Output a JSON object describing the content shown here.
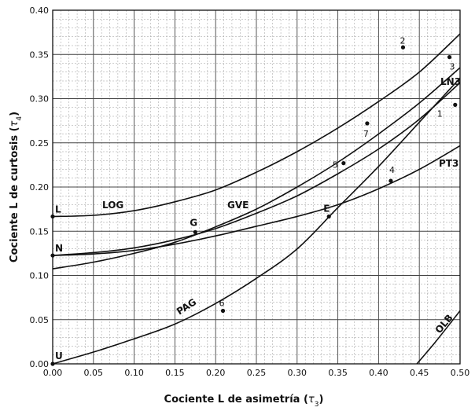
{
  "chart_data": {
    "type": "line",
    "xlabel_main": "Cociente L de asimetría (",
    "xlabel_sym": "τ",
    "xlabel_sub": "3",
    "ylabel_main": "Cociente L de curtosis (",
    "ylabel_sym": "τ",
    "ylabel_sub": "4",
    "label_close": ")",
    "xlim": [
      0,
      0.5
    ],
    "ylim": [
      0,
      0.4
    ],
    "x_ticks": [
      "0.00",
      "0.05",
      "0.10",
      "0.15",
      "0.20",
      "0.25",
      "0.30",
      "0.35",
      "0.40",
      "0.45",
      "0.50"
    ],
    "y_ticks": [
      "0.00",
      "0.05",
      "0.10",
      "0.15",
      "0.20",
      "0.25",
      "0.30",
      "0.35",
      "0.40"
    ],
    "grid": true,
    "series": [
      {
        "name": "LOG",
        "x": [
          0,
          0.05,
          0.1,
          0.15,
          0.2,
          0.25,
          0.3,
          0.35,
          0.4,
          0.45,
          0.5
        ],
        "y": [
          0.1667,
          0.168,
          0.1733,
          0.1833,
          0.1967,
          0.2167,
          0.24,
          0.2667,
          0.2967,
          0.33,
          0.3733
        ]
      },
      {
        "name": "GVE",
        "x": [
          0,
          0.05,
          0.1,
          0.15,
          0.2,
          0.25,
          0.3,
          0.35,
          0.4,
          0.45,
          0.5
        ],
        "y": [
          0.1075,
          0.115,
          0.125,
          0.1375,
          0.155,
          0.175,
          0.2,
          0.228,
          0.26,
          0.295,
          0.335
        ]
      },
      {
        "name": "LN3",
        "x": [
          0,
          0.05,
          0.1,
          0.15,
          0.2,
          0.25,
          0.3,
          0.35,
          0.4,
          0.45,
          0.5
        ],
        "y": [
          0.1226,
          0.1258,
          0.1312,
          0.1404,
          0.153,
          0.1703,
          0.19,
          0.215,
          0.243,
          0.2767,
          0.318
        ]
      },
      {
        "name": "PT3",
        "x": [
          0,
          0.05,
          0.1,
          0.15,
          0.2,
          0.25,
          0.3,
          0.35,
          0.4,
          0.45,
          0.5
        ],
        "y": [
          0.1226,
          0.1243,
          0.1283,
          0.1354,
          0.1447,
          0.1556,
          0.1667,
          0.18,
          0.198,
          0.22,
          0.2467
        ]
      },
      {
        "name": "PAG",
        "x": [
          0,
          0.05,
          0.1,
          0.15,
          0.2,
          0.25,
          0.3,
          0.35,
          0.4,
          0.45,
          0.5
        ],
        "y": [
          0,
          0.0133,
          0.0283,
          0.045,
          0.0683,
          0.0967,
          0.13,
          0.1767,
          0.2233,
          0.2733,
          0.3233
        ]
      },
      {
        "name": "OLB",
        "x": [
          0.447,
          0.47,
          0.5
        ],
        "y": [
          0,
          0.025,
          0.06
        ]
      }
    ],
    "points": [
      {
        "label": "1",
        "x": 0.494,
        "y": 0.293
      },
      {
        "label": "2",
        "x": 0.43,
        "y": 0.358
      },
      {
        "label": "3",
        "x": 0.487,
        "y": 0.347
      },
      {
        "label": "4",
        "x": 0.415,
        "y": 0.207
      },
      {
        "label": "5",
        "x": 0.357,
        "y": 0.227
      },
      {
        "label": "6",
        "x": 0.209,
        "y": 0.06
      },
      {
        "label": "7",
        "x": 0.386,
        "y": 0.272
      }
    ],
    "markers": [
      {
        "label": "L",
        "x": 0,
        "y": 0.1667
      },
      {
        "label": "N",
        "x": 0,
        "y": 0.1226
      },
      {
        "label": "U",
        "x": 0,
        "y": 0
      },
      {
        "label": "G",
        "x": 0.175,
        "y": 0.149
      },
      {
        "label": "E",
        "x": 0.339,
        "y": 0.1667
      }
    ]
  }
}
